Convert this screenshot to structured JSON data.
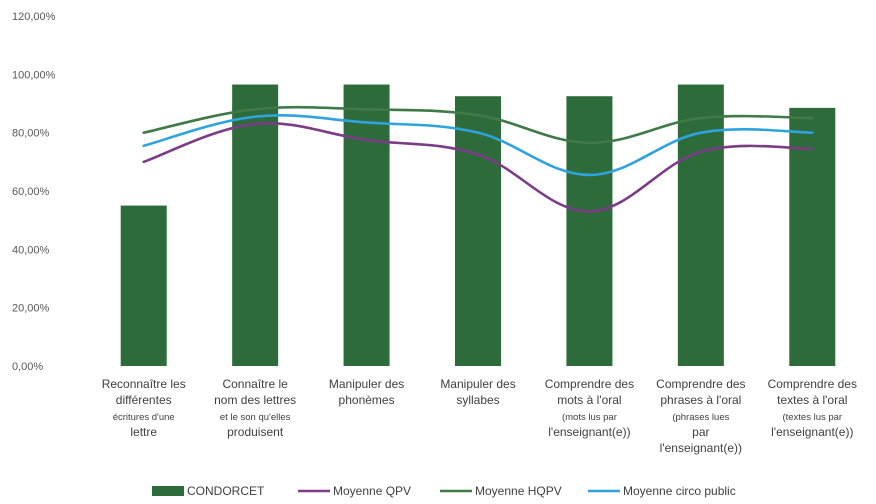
{
  "chart_data": {
    "type": "bar",
    "title": "",
    "xlabel": "",
    "ylabel": "",
    "ylim": [
      0,
      1.2
    ],
    "ytick_values": [
      0,
      0.2,
      0.4,
      0.6,
      0.8,
      1.0,
      1.2
    ],
    "ytick_labels": [
      "0,00%",
      "20,00%",
      "40,00%",
      "60,00%",
      "80,00%",
      "100,00%",
      "120,00%"
    ],
    "grid": false,
    "legend_position": "bottom",
    "categories": [
      [
        "Reconnaître les",
        "différentes",
        "écritures d'une",
        "lettre"
      ],
      [
        "Connaître le",
        "nom des lettres",
        "et le son qu'elles",
        "produisent"
      ],
      [
        "Manipuler des",
        "phonèmes"
      ],
      [
        "Manipuler des",
        "syllabes"
      ],
      [
        "Comprendre des",
        "mots à l'oral",
        "(mots lus par",
        "l'enseignant(e))"
      ],
      [
        "Comprendre des",
        "phrases à l'oral",
        "(phrases lues",
        "par",
        "l'enseignant(e))"
      ],
      [
        "Comprendre des",
        "textes à l'oral",
        "(textes lus par",
        "l'enseignant(e))"
      ]
    ],
    "small_lines": [
      [
        2
      ],
      [
        2
      ],
      [],
      [],
      [
        2
      ],
      [
        2
      ],
      [
        2
      ]
    ],
    "series": [
      {
        "name": "CONDORCET",
        "kind": "bar",
        "color": "#2e6b3a",
        "values": [
          0.55,
          0.965,
          0.965,
          0.925,
          0.925,
          0.965,
          0.885
        ]
      },
      {
        "name": "Moyenne QPV",
        "kind": "line",
        "color": "#7a3d86",
        "values": [
          0.7,
          0.83,
          0.775,
          0.725,
          0.53,
          0.735,
          0.745
        ]
      },
      {
        "name": "Moyenne HQPV",
        "kind": "line",
        "color": "#3f7a48",
        "values": [
          0.8,
          0.88,
          0.88,
          0.86,
          0.765,
          0.85,
          0.85
        ]
      },
      {
        "name": "Moyenne circo public",
        "kind": "line",
        "color": "#2ea3de",
        "values": [
          0.755,
          0.855,
          0.835,
          0.8,
          0.655,
          0.8,
          0.8
        ]
      }
    ]
  }
}
